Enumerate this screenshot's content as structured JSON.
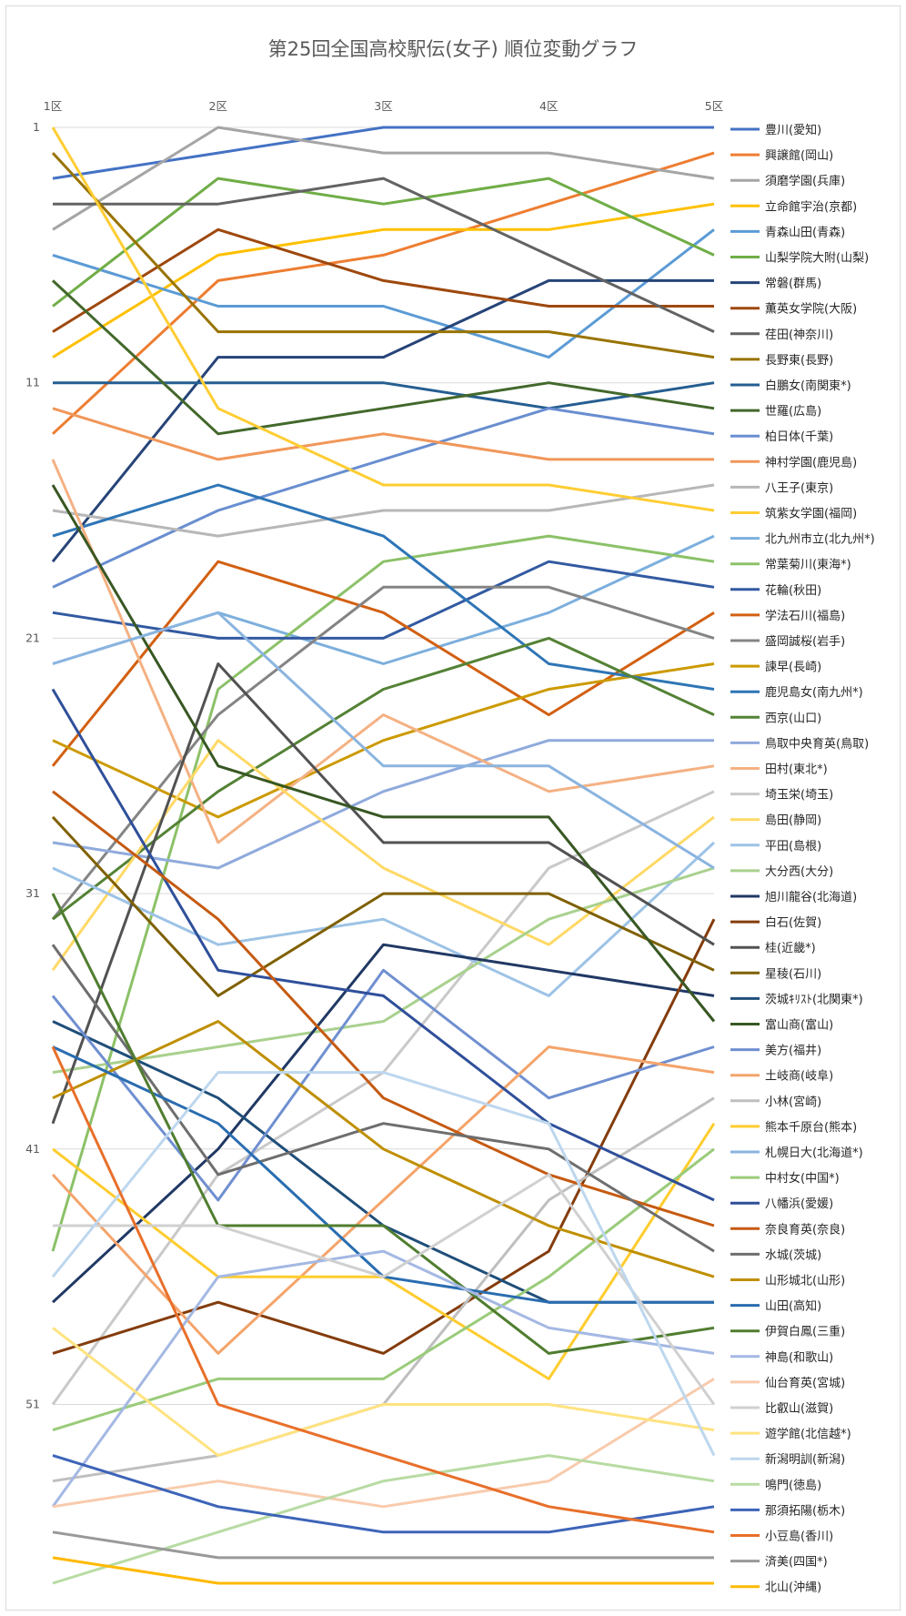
{
  "chart_data": {
    "type": "line",
    "title": "第25回全国高校駅伝(女子) 順位変動グラフ",
    "x": [
      "1区",
      "2区",
      "3区",
      "4区",
      "5区"
    ],
    "y_ticks": [
      "1",
      "11",
      "21",
      "31",
      "41",
      "51"
    ],
    "ylim": [
      1,
      58
    ],
    "y_reversed": true,
    "grid": true,
    "legend_position": "right",
    "series": [
      {
        "name": "豊川(愛知)",
        "color": "#4472c4",
        "values": [
          3,
          2,
          1,
          1,
          1
        ]
      },
      {
        "name": "興譲館(岡山)",
        "color": "#ed7d31",
        "values": [
          13,
          7,
          6,
          4,
          2
        ]
      },
      {
        "name": "須磨学園(兵庫)",
        "color": "#a5a5a5",
        "values": [
          5,
          1,
          2,
          2,
          3
        ]
      },
      {
        "name": "立命館宇治(京都)",
        "color": "#ffc000",
        "values": [
          10,
          6,
          5,
          5,
          4
        ]
      },
      {
        "name": "青森山田(青森)",
        "color": "#5b9bd5",
        "values": [
          6,
          8,
          8,
          10,
          5
        ]
      },
      {
        "name": "山梨学院大附(山梨)",
        "color": "#70ad47",
        "values": [
          8,
          3,
          4,
          3,
          6
        ]
      },
      {
        "name": "常磐(群馬)",
        "color": "#264478",
        "values": [
          18,
          10,
          10,
          7,
          7
        ]
      },
      {
        "name": "薫英女学院(大阪)",
        "color": "#9e480e",
        "values": [
          9,
          5,
          7,
          8,
          8
        ]
      },
      {
        "name": "荏田(神奈川)",
        "color": "#636363",
        "values": [
          4,
          4,
          3,
          6,
          9
        ]
      },
      {
        "name": "長野東(長野)",
        "color": "#997300",
        "values": [
          2,
          9,
          9,
          9,
          10
        ]
      },
      {
        "name": "白鵬女(南関東*)",
        "color": "#255e91",
        "values": [
          11,
          11,
          11,
          12,
          11
        ]
      },
      {
        "name": "世羅(広島)",
        "color": "#43682b",
        "values": [
          7,
          13,
          12,
          11,
          12
        ]
      },
      {
        "name": "柏日体(千葉)",
        "color": "#698ed0",
        "values": [
          19,
          16,
          14,
          12,
          13
        ]
      },
      {
        "name": "神村学園(鹿児島)",
        "color": "#f1975a",
        "values": [
          12,
          14,
          13,
          14,
          14
        ]
      },
      {
        "name": "八王子(東京)",
        "color": "#b7b7b7",
        "values": [
          16,
          17,
          16,
          16,
          15
        ]
      },
      {
        "name": "筑紫女学園(福岡)",
        "color": "#ffcd33",
        "values": [
          1,
          12,
          15,
          15,
          16
        ]
      },
      {
        "name": "北九州市立(北九州*)",
        "color": "#7cafdd",
        "values": [
          22,
          20,
          22,
          20,
          17
        ]
      },
      {
        "name": "常葉菊川(東海*)",
        "color": "#8cc168",
        "values": [
          45,
          23,
          18,
          17,
          18
        ]
      },
      {
        "name": "花輪(秋田)",
        "color": "#335aa1",
        "values": [
          20,
          21,
          21,
          18,
          19
        ]
      },
      {
        "name": "学法石川(福島)",
        "color": "#d26012",
        "values": [
          26,
          18,
          20,
          24,
          20
        ]
      },
      {
        "name": "盛岡誠桜(岩手)",
        "color": "#848484",
        "values": [
          32,
          24,
          19,
          19,
          21
        ]
      },
      {
        "name": "諫早(長崎)",
        "color": "#cc9a00",
        "values": [
          25,
          28,
          25,
          23,
          22
        ]
      },
      {
        "name": "鹿児島女(南九州*)",
        "color": "#2e75b6",
        "values": [
          17,
          15,
          17,
          22,
          23
        ]
      },
      {
        "name": "西京(山口)",
        "color": "#548235",
        "values": [
          32,
          27,
          23,
          21,
          24
        ]
      },
      {
        "name": "鳥取中央育英(鳥取)",
        "color": "#8faadc",
        "values": [
          29,
          30,
          27,
          25,
          25
        ]
      },
      {
        "name": "田村(東北*)",
        "color": "#f4b183",
        "values": [
          14,
          29,
          24,
          27,
          26
        ]
      },
      {
        "name": "埼玉栄(埼玉)",
        "color": "#c9c9c9",
        "values": [
          51,
          42,
          38,
          30,
          27
        ]
      },
      {
        "name": "島田(静岡)",
        "color": "#ffd966",
        "values": [
          34,
          25,
          30,
          33,
          28
        ]
      },
      {
        "name": "平田(島根)",
        "color": "#9dc3e6",
        "values": [
          30,
          33,
          32,
          35,
          29
        ]
      },
      {
        "name": "大分西(大分)",
        "color": "#a9d18e",
        "values": [
          38,
          37,
          36,
          32,
          30
        ]
      },
      {
        "name": "旭川龍谷(北海道)",
        "color": "#203864",
        "values": [
          47,
          41,
          33,
          34,
          35
        ]
      },
      {
        "name": "白石(佐賀)",
        "color": "#843c0c",
        "values": [
          49,
          47,
          49,
          45,
          32
        ]
      },
      {
        "name": "桂(近畿*)",
        "color": "#525252",
        "values": [
          40,
          22,
          29,
          29,
          33
        ]
      },
      {
        "name": "星稜(石川)",
        "color": "#7f6000",
        "values": [
          28,
          35,
          31,
          31,
          34
        ]
      },
      {
        "name": "茨城ｷﾘｽﾄ(北関東*)",
        "color": "#1f4e79",
        "values": [
          36,
          39,
          44,
          47,
          47
        ]
      },
      {
        "name": "富山商(富山)",
        "color": "#385723",
        "values": [
          15,
          26,
          28,
          28,
          36
        ]
      },
      {
        "name": "美方(福井)",
        "color": "#6f8fd0",
        "values": [
          35,
          43,
          34,
          39,
          37
        ]
      },
      {
        "name": "土岐商(岐阜)",
        "color": "#f4a46b",
        "values": [
          42,
          49,
          43,
          37,
          38
        ]
      },
      {
        "name": "小林(宮崎)",
        "color": "#bfbfbf",
        "values": [
          54,
          53,
          51,
          43,
          39
        ]
      },
      {
        "name": "熊本千原台(熊本)",
        "color": "#ffcc2e",
        "values": [
          41,
          46,
          46,
          50,
          40
        ]
      },
      {
        "name": "札幌日大(北海道*)",
        "color": "#8ab4e0",
        "values": [
          22,
          20,
          26,
          26,
          30
        ]
      },
      {
        "name": "中村女(中国*)",
        "color": "#9acb7a",
        "values": [
          52,
          50,
          50,
          46,
          41
        ]
      },
      {
        "name": "八幡浜(愛媛)",
        "color": "#2f4f9a",
        "values": [
          23,
          34,
          35,
          40,
          43
        ]
      },
      {
        "name": "奈良育英(奈良)",
        "color": "#c55a11",
        "values": [
          27,
          32,
          39,
          42,
          44
        ]
      },
      {
        "name": "水城(茨城)",
        "color": "#6e6e6e",
        "values": [
          33,
          42,
          40,
          41,
          45
        ]
      },
      {
        "name": "山形城北(山形)",
        "color": "#bf8f00",
        "values": [
          39,
          36,
          41,
          44,
          46
        ]
      },
      {
        "name": "山田(高知)",
        "color": "#2a6db0",
        "values": [
          37,
          40,
          46,
          47,
          47
        ]
      },
      {
        "name": "伊賀白鳳(三重)",
        "color": "#507d2f",
        "values": [
          31,
          44,
          44,
          49,
          48
        ]
      },
      {
        "name": "神島(和歌山)",
        "color": "#a4b8e3",
        "values": [
          55,
          46,
          45,
          48,
          49
        ]
      },
      {
        "name": "仙台育英(宮城)",
        "color": "#f8cbad",
        "values": [
          55,
          54,
          55,
          54,
          50
        ]
      },
      {
        "name": "比叡山(滋賀)",
        "color": "#d0d0d0",
        "values": [
          44,
          44,
          46,
          42,
          51
        ]
      },
      {
        "name": "遊学館(北信越*)",
        "color": "#ffe380",
        "values": [
          48,
          53,
          51,
          51,
          52
        ]
      },
      {
        "name": "新潟明訓(新潟)",
        "color": "#bdd7ee",
        "values": [
          46,
          38,
          38,
          40,
          53
        ]
      },
      {
        "name": "鳴門(徳島)",
        "color": "#b8dba3",
        "values": [
          58,
          56,
          54,
          53,
          54
        ]
      },
      {
        "name": "那須拓陽(栃木)",
        "color": "#3d64b8",
        "values": [
          53,
          55,
          56,
          56,
          55
        ]
      },
      {
        "name": "小豆島(香川)",
        "color": "#e86f2a",
        "values": [
          37,
          51,
          53,
          55,
          56
        ]
      },
      {
        "name": "済美(四国*)",
        "color": "#999999",
        "values": [
          56,
          57,
          57,
          57,
          57
        ]
      },
      {
        "name": "北山(沖縄)",
        "color": "#ffb900",
        "values": [
          57,
          58,
          58,
          58,
          58
        ]
      }
    ]
  }
}
